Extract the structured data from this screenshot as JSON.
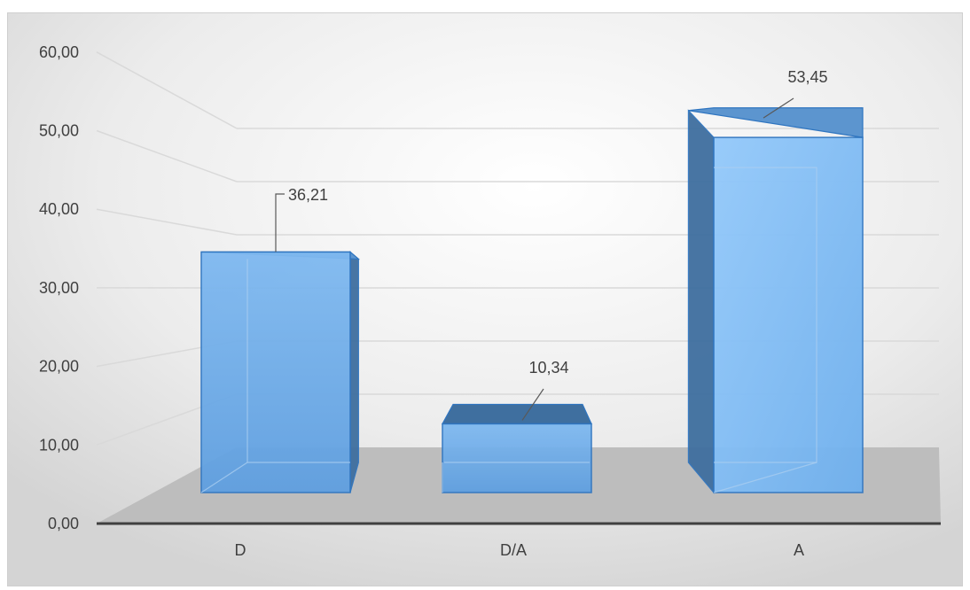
{
  "chart_data": {
    "type": "bar",
    "categories": [
      "D",
      "D/A",
      "A"
    ],
    "values": [
      36.21,
      10.34,
      53.45
    ],
    "data_labels": [
      "36,21",
      "10,34",
      "53,45"
    ],
    "ylim": [
      0,
      60
    ],
    "ytick_labels": [
      "0,00",
      "10,00",
      "20,00",
      "30,00",
      "40,00",
      "50,00",
      "60,00"
    ],
    "grid": true,
    "legend": "none",
    "style": "3d",
    "colors": {
      "bar_front": "#6aa8e6",
      "bar_side": "#3f6f9f",
      "bar_edge": "#2f75c0",
      "floor": "#bdbdbd",
      "gridline": "#d9d9d9"
    }
  }
}
